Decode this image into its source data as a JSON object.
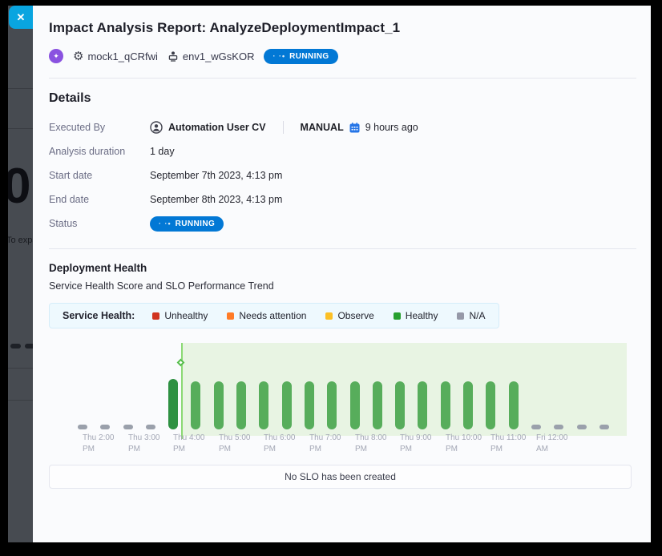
{
  "overlay": {
    "close_glyph": "✕",
    "background_page": {
      "big_number": "0",
      "clipped_text": "To expa"
    }
  },
  "header": {
    "title": "Impact Analysis Report: AnalyzeDeploymentImpact_1",
    "service_id": "mock1_qCRfwi",
    "environment_id": "env1_wGsKOR",
    "status_badge": {
      "spinner": "· ·•",
      "label": "RUNNING",
      "color": "#0278d5"
    }
  },
  "details": {
    "heading": "Details",
    "executed_by": {
      "label": "Executed By",
      "user": "Automation User CV",
      "trigger_type": "MANUAL",
      "time_ago": "9 hours ago"
    },
    "duration": {
      "label": "Analysis duration",
      "value": "1 day"
    },
    "start": {
      "label": "Start date",
      "value": "September 7th 2023, 4:13 pm"
    },
    "end": {
      "label": "End date",
      "value": "September 8th 2023, 4:13 pm"
    },
    "status": {
      "label": "Status"
    }
  },
  "deployment_health": {
    "heading": "Deployment Health",
    "subtitle": "Service Health Score and SLO Performance Trend",
    "slo_empty_text": "No SLO has been created"
  },
  "chart_data": {
    "type": "bar",
    "title": "Service Health Score and SLO Performance Trend",
    "x_interval_minutes": 30,
    "legend": {
      "title": "Service Health:",
      "items": [
        {
          "label": "Unhealthy",
          "color": "#d0341f"
        },
        {
          "label": "Needs attention",
          "color": "#ff7b26"
        },
        {
          "label": "Observe",
          "color": "#fcc026"
        },
        {
          "label": "Healthy",
          "color": "#27a02f"
        },
        {
          "label": "N/A",
          "color": "#9699a8"
        }
      ]
    },
    "slots": [
      "na",
      "na",
      "na",
      "na",
      "healthy-first",
      "healthy",
      "healthy",
      "healthy",
      "healthy",
      "healthy",
      "healthy",
      "healthy",
      "healthy",
      "healthy",
      "healthy",
      "healthy",
      "healthy",
      "healthy",
      "healthy",
      "healthy",
      "na",
      "na",
      "na",
      "na"
    ],
    "bar_colors": {
      "healthy": "#57ad5b",
      "healthy-first": "#2e9142",
      "na": "#9aa0ab"
    },
    "tick_labels": [
      {
        "slot": 0,
        "line1": "Thu 2:00",
        "line2": "PM"
      },
      {
        "slot": 2,
        "line1": "Thu 3:00",
        "line2": "PM"
      },
      {
        "slot": 4,
        "line1": "Thu 4:00",
        "line2": "PM"
      },
      {
        "slot": 6,
        "line1": "Thu 5:00",
        "line2": "PM"
      },
      {
        "slot": 8,
        "line1": "Thu 6:00",
        "line2": "PM"
      },
      {
        "slot": 10,
        "line1": "Thu 7:00",
        "line2": "PM"
      },
      {
        "slot": 12,
        "line1": "Thu 8:00",
        "line2": "PM"
      },
      {
        "slot": 14,
        "line1": "Thu 9:00",
        "line2": "PM"
      },
      {
        "slot": 16,
        "line1": "Thu 10:00",
        "line2": "PM"
      },
      {
        "slot": 18,
        "line1": "Thu 11:00",
        "line2": "PM"
      },
      {
        "slot": 20,
        "line1": "Fri 12:00",
        "line2": "AM"
      }
    ],
    "deployment_marker": {
      "after_slot": 4,
      "color": "#8bd974"
    },
    "shaded_region": {
      "from_marker_to_right": true,
      "color": "#e8f4e3"
    }
  }
}
